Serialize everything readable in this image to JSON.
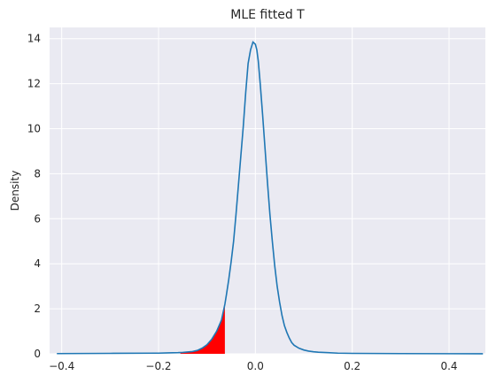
{
  "chart_data": {
    "type": "line",
    "title": "MLE fitted T",
    "xlabel": "",
    "ylabel": "Density",
    "xlim": [
      -0.425,
      0.475
    ],
    "ylim": [
      0,
      14.5
    ],
    "xticks": [
      -0.4,
      -0.2,
      0.0,
      0.2,
      0.4
    ],
    "xtick_labels": [
      "−0.4",
      "−0.2",
      "0.0",
      "0.2",
      "0.4"
    ],
    "yticks": [
      0,
      2,
      4,
      6,
      8,
      10,
      12,
      14
    ],
    "ytick_labels": [
      "0",
      "2",
      "4",
      "6",
      "8",
      "10",
      "12",
      "14"
    ],
    "grid": true,
    "background": "#eaeaf2",
    "line_color": "#1f77b4",
    "fill_color": "#ff0000",
    "shaded_region": {
      "x_from": -0.155,
      "x_to": -0.063
    },
    "series": [
      {
        "x": [
          -0.41,
          -0.3,
          -0.2,
          -0.18,
          -0.16,
          -0.15,
          -0.14,
          -0.13,
          -0.12,
          -0.11,
          -0.1,
          -0.09,
          -0.08,
          -0.07,
          -0.063,
          -0.06,
          -0.055,
          -0.05,
          -0.045,
          -0.04,
          -0.035,
          -0.03,
          -0.025,
          -0.02,
          -0.015,
          -0.01,
          -0.005,
          0.0,
          0.003,
          0.006,
          0.01,
          0.015,
          0.02,
          0.025,
          0.03,
          0.035,
          0.04,
          0.045,
          0.05,
          0.055,
          0.06,
          0.065,
          0.07,
          0.075,
          0.08,
          0.09,
          0.1,
          0.11,
          0.12,
          0.13,
          0.14,
          0.15,
          0.17,
          0.2,
          0.3,
          0.4,
          0.47
        ],
        "y": [
          0.01,
          0.02,
          0.03,
          0.04,
          0.05,
          0.06,
          0.08,
          0.1,
          0.15,
          0.25,
          0.4,
          0.65,
          1.0,
          1.5,
          2.2,
          2.6,
          3.3,
          4.1,
          5.0,
          6.2,
          7.5,
          8.8,
          10.1,
          11.6,
          12.9,
          13.5,
          13.85,
          13.75,
          13.5,
          13.0,
          12.0,
          10.6,
          9.1,
          7.6,
          6.2,
          5.0,
          3.9,
          3.0,
          2.3,
          1.7,
          1.25,
          0.95,
          0.7,
          0.5,
          0.38,
          0.25,
          0.17,
          0.12,
          0.09,
          0.07,
          0.06,
          0.05,
          0.03,
          0.02,
          0.01,
          0.005,
          0.003
        ]
      }
    ]
  }
}
